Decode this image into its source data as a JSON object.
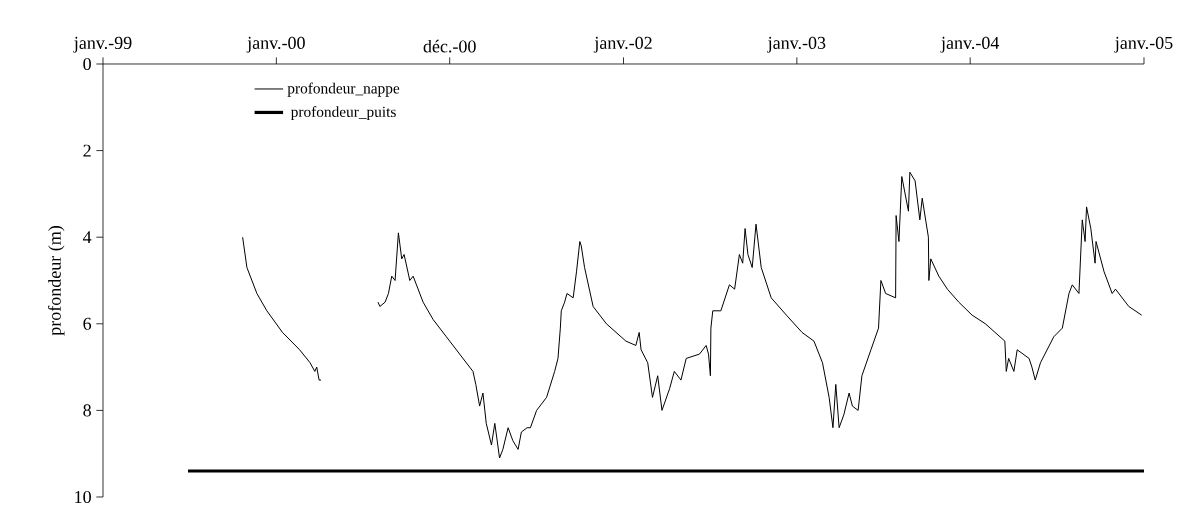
{
  "chart_data": {
    "type": "line",
    "ylabel": "profondeur (m)",
    "xlim": [
      "1999-01-01",
      "2005-01-01"
    ],
    "xticks": [
      {
        "value": "1999-01-01",
        "label": "janv.-99"
      },
      {
        "value": "2000-01-01",
        "label": "janv.-00"
      },
      {
        "value": "2000-12-31",
        "label": "déc.-00"
      },
      {
        "value": "2002-01-01",
        "label": "janv.-02"
      },
      {
        "value": "2003-01-01",
        "label": "janv.-03"
      },
      {
        "value": "2004-01-01",
        "label": "janv.-04"
      },
      {
        "value": "2005-01-01",
        "label": "janv.-05"
      }
    ],
    "ylim": [
      10,
      0
    ],
    "yticks": [
      0,
      2,
      4,
      6,
      8,
      10
    ],
    "legend": "top left",
    "marker": "none",
    "line_style": "solid",
    "series": [
      {
        "name": "profondeur_nappe",
        "color": "#000000",
        "x": [
          "1999-10-22",
          "1999-10-31",
          "1999-11-21",
          "1999-12-12",
          "2000-01-14",
          "2000-02-19",
          "2000-03-12",
          "2000-03-22",
          "2000-03-26",
          "2000-03-31",
          "2000-04-04",
          "2000-06-01",
          "2000-08-02",
          "2000-08-06",
          "2000-08-17",
          "2000-08-24",
          "2000-08-31",
          "2000-09-07",
          "2000-09-14",
          "2000-09-21",
          "2000-09-26",
          "2000-10-08",
          "2000-10-15",
          "2000-11-05",
          "2000-11-26",
          "2000-12-24",
          "2001-01-21",
          "2001-02-18",
          "2001-02-24",
          "2001-03-04",
          "2001-03-11",
          "2001-03-18",
          "2001-03-29",
          "2001-04-05",
          "2001-04-15",
          "2001-04-22",
          "2001-05-03",
          "2001-05-13",
          "2001-05-24",
          "2001-05-31",
          "2001-06-12",
          "2001-06-19",
          "2001-07-02",
          "2001-07-23",
          "2001-08-09",
          "2001-08-16",
          "2001-08-21",
          "2001-08-23",
          "2001-08-30",
          "2001-09-04",
          "2001-09-17",
          "2001-09-24",
          "2001-10-01",
          "2001-10-04",
          "2001-10-11",
          "2001-10-29",
          "2001-11-26",
          "2002-01-06",
          "2002-01-27",
          "2002-02-03",
          "2002-02-07",
          "2002-02-21",
          "2002-03-03",
          "2002-03-14",
          "2002-03-23",
          "2002-04-08",
          "2002-04-18",
          "2002-05-02",
          "2002-05-13",
          "2002-06-10",
          "2002-06-24",
          "2002-06-29",
          "2002-07-03",
          "2002-07-04",
          "2002-07-08",
          "2002-07-25",
          "2002-08-12",
          "2002-08-23",
          "2002-09-02",
          "2002-09-09",
          "2002-09-14",
          "2002-09-20",
          "2002-09-29",
          "2002-10-07",
          "2002-10-18",
          "2002-11-08",
          "2002-12-10",
          "2003-01-12",
          "2003-02-06",
          "2003-02-24",
          "2003-03-10",
          "2003-03-18",
          "2003-03-24",
          "2003-03-31",
          "2003-04-10",
          "2003-04-21",
          "2003-04-28",
          "2003-05-10",
          "2003-05-18",
          "2003-06-06",
          "2003-06-22",
          "2003-06-27",
          "2003-07-07",
          "2003-07-28",
          "2003-07-29",
          "2003-08-04",
          "2003-08-10",
          "2003-08-24",
          "2003-08-27",
          "2003-09-07",
          "2003-09-17",
          "2003-09-22",
          "2003-10-05",
          "2003-10-06",
          "2003-10-10",
          "2003-10-27",
          "2003-11-14",
          "2003-12-08",
          "2004-01-05",
          "2004-02-02",
          "2004-03-14",
          "2004-03-17",
          "2004-03-22",
          "2004-04-02",
          "2004-04-09",
          "2004-05-04",
          "2004-05-10",
          "2004-05-17",
          "2004-05-28",
          "2004-06-25",
          "2004-07-13",
          "2004-07-27",
          "2004-08-03",
          "2004-08-17",
          "2004-08-24",
          "2004-08-30",
          "2004-09-02",
          "2004-09-11",
          "2004-09-20",
          "2004-09-22",
          "2004-10-09",
          "2004-10-26",
          "2004-11-02",
          "2004-11-30",
          "2004-12-27"
        ],
        "values": [
          4.0,
          4.7,
          5.3,
          5.7,
          6.2,
          6.6,
          6.9,
          7.1,
          7.0,
          7.3,
          7.3,
          null,
          5.5,
          5.6,
          5.5,
          5.3,
          4.9,
          5.0,
          3.9,
          4.5,
          4.4,
          5.0,
          4.9,
          5.5,
          5.9,
          6.3,
          6.7,
          7.1,
          7.4,
          7.9,
          7.6,
          8.3,
          8.8,
          8.3,
          9.1,
          8.9,
          8.4,
          8.7,
          8.9,
          8.5,
          8.4,
          8.4,
          8.0,
          7.7,
          7.1,
          6.8,
          6.1,
          5.7,
          5.5,
          5.3,
          5.4,
          4.8,
          4.1,
          4.2,
          4.7,
          5.6,
          6.0,
          6.4,
          6.5,
          6.2,
          6.6,
          6.9,
          7.7,
          7.2,
          8.0,
          7.5,
          7.1,
          7.3,
          6.8,
          6.7,
          6.5,
          6.7,
          7.2,
          6.1,
          5.7,
          5.7,
          5.1,
          5.2,
          4.4,
          4.6,
          3.8,
          4.4,
          4.7,
          3.7,
          4.7,
          5.4,
          5.8,
          6.2,
          6.4,
          6.9,
          7.7,
          8.4,
          7.4,
          8.4,
          8.1,
          7.6,
          7.9,
          8.0,
          7.2,
          6.6,
          6.1,
          5.0,
          5.3,
          5.4,
          3.5,
          4.1,
          2.6,
          3.4,
          2.5,
          2.7,
          3.6,
          3.1,
          4.0,
          5.0,
          4.5,
          4.9,
          5.2,
          5.5,
          5.8,
          6.0,
          6.4,
          7.1,
          6.8,
          7.1,
          6.6,
          6.8,
          7.0,
          7.3,
          6.9,
          6.3,
          6.1,
          5.3,
          5.1,
          5.3,
          3.6,
          4.1,
          3.3,
          3.8,
          4.6,
          4.1,
          4.8,
          5.3,
          5.2,
          5.6,
          5.8
        ]
      },
      {
        "name": "profondeur_puits",
        "color": "#000000",
        "x": [
          "1999-06-29",
          "2005-01-01"
        ],
        "values": [
          9.4,
          9.4
        ]
      }
    ]
  }
}
